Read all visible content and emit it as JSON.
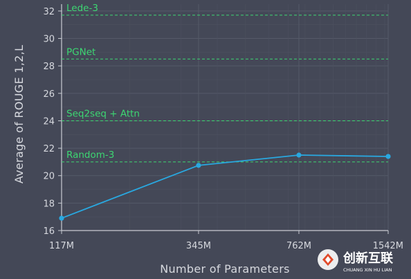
{
  "chart_data": {
    "type": "line",
    "title": "",
    "xlabel": "Number of Parameters",
    "ylabel": "Average of ROUGE 1,2,L",
    "x_scale": "log",
    "x": [
      117,
      345,
      762,
      1542
    ],
    "x_tick_labels": [
      "117M",
      "345M",
      "762M",
      "1542M"
    ],
    "ylim": [
      16,
      32.5
    ],
    "y_ticks": [
      16,
      18,
      20,
      22,
      24,
      26,
      28,
      30,
      32
    ],
    "grid": true,
    "series": [
      {
        "values": [
          16.9,
          20.75,
          21.5,
          21.4
        ],
        "color": "#29a8e0"
      }
    ],
    "reference_lines": [
      {
        "label": "Lede-3",
        "value": 31.7
      },
      {
        "label": "PGNet",
        "value": 28.5
      },
      {
        "label": "Seq2seq + Attn",
        "value": 24.0
      },
      {
        "label": "Random-3",
        "value": 21.0
      }
    ],
    "reference_color": "#3dd672",
    "background_color": "#444857"
  },
  "watermark": {
    "brand": "创新互联",
    "sub": "CHUANG XIN HU LIAN"
  }
}
